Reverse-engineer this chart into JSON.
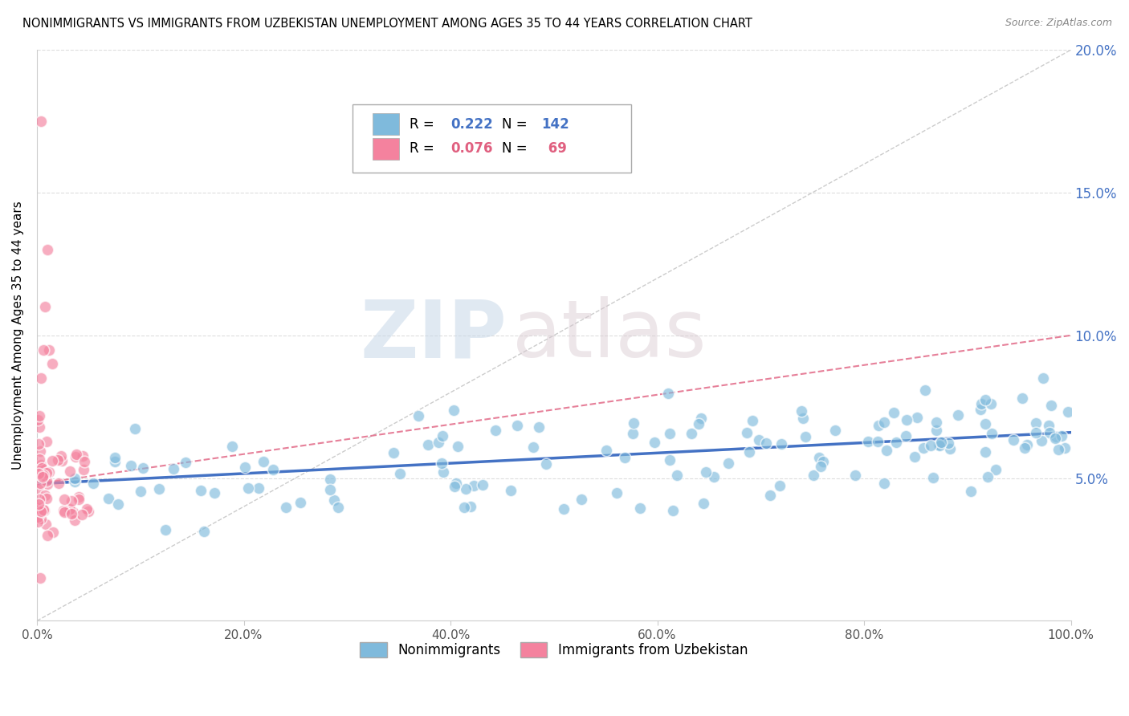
{
  "title": "NONIMMIGRANTS VS IMMIGRANTS FROM UZBEKISTAN UNEMPLOYMENT AMONG AGES 35 TO 44 YEARS CORRELATION CHART",
  "source": "Source: ZipAtlas.com",
  "ylabel": "Unemployment Among Ages 35 to 44 years",
  "xlim": [
    0,
    1.0
  ],
  "ylim": [
    0,
    0.2
  ],
  "xtick_values": [
    0.0,
    0.2,
    0.4,
    0.6,
    0.8,
    1.0
  ],
  "xtick_labels": [
    "0.0%",
    "20.0%",
    "40.0%",
    "60.0%",
    "80.0%",
    "100.0%"
  ],
  "ytick_values": [
    0.05,
    0.1,
    0.15,
    0.2
  ],
  "ytick_labels_right": [
    "5.0%",
    "10.0%",
    "15.0%",
    "20.0%"
  ],
  "nonimmigrant_color": "#7fbadc",
  "immigrant_color": "#f4829e",
  "trend_nonimmigrant_color": "#4472C4",
  "trend_immigrant_color": "#e06080",
  "R_nonimmigrant": 0.222,
  "N_nonimmigrant": 142,
  "R_immigrant": 0.076,
  "N_immigrant": 69,
  "watermark_zip": "ZIP",
  "watermark_atlas": "atlas",
  "background_color": "#ffffff",
  "grid_color": "#dddddd",
  "diag_color": "#cccccc",
  "legend_label_1": "Nonimmigrants",
  "legend_label_2": "Immigrants from Uzbekistan"
}
